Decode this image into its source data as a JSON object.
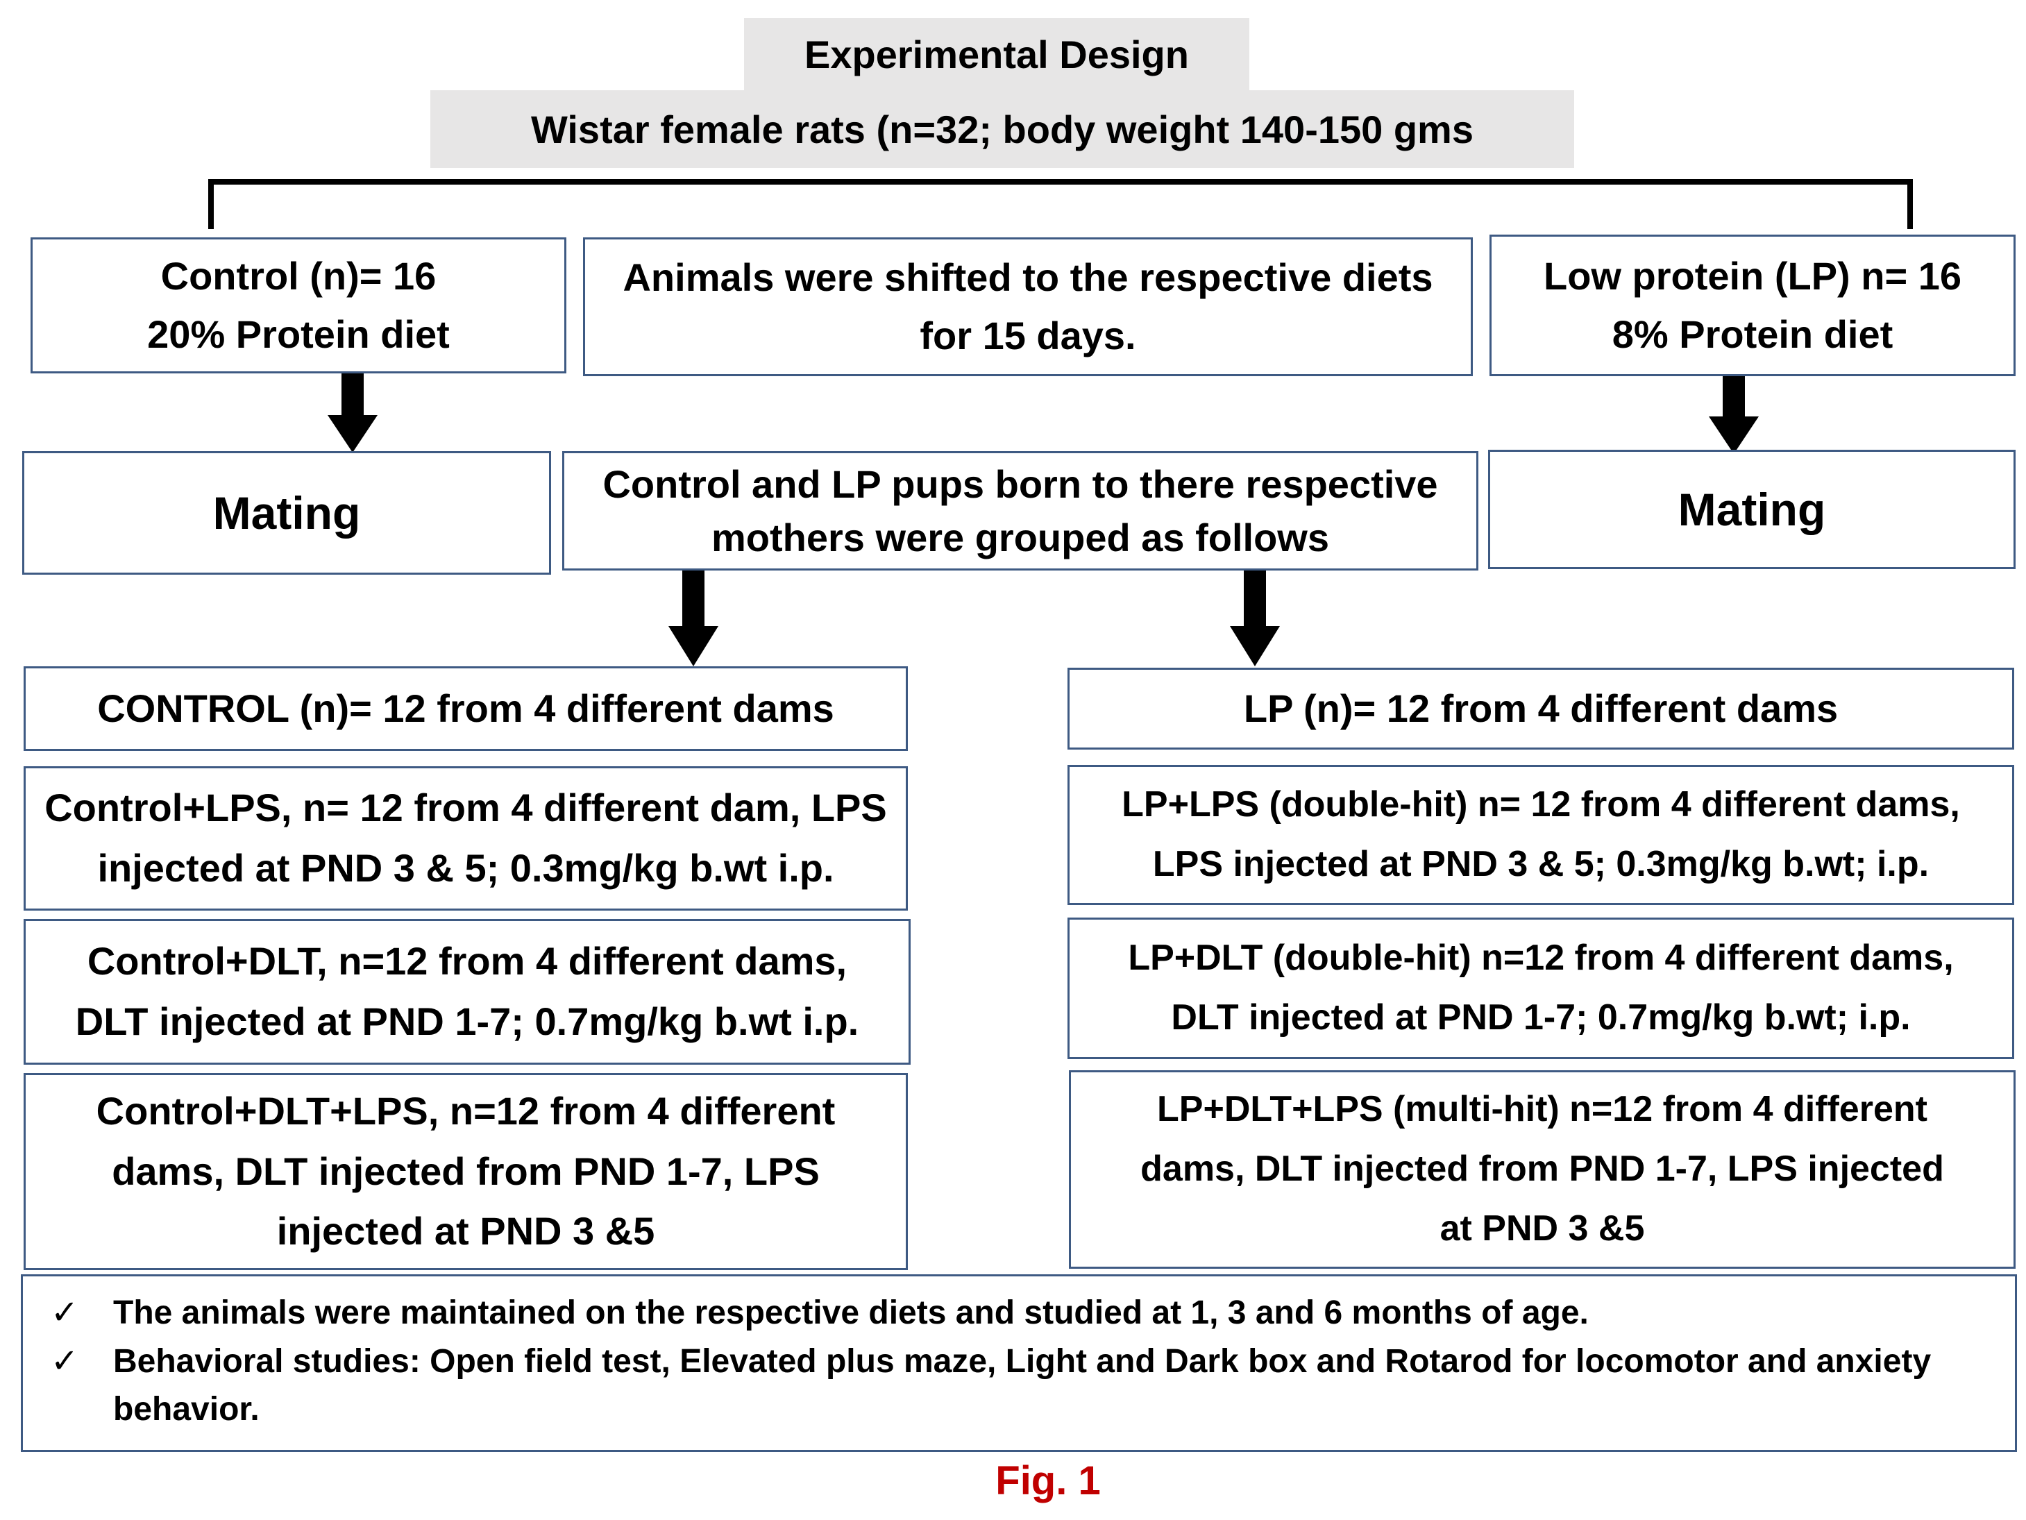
{
  "header": {
    "title": "Experimental Design",
    "subtitle": "Wistar female rats (n=32; body weight 140-150 gms"
  },
  "row1": {
    "control": [
      "Control (n)= 16",
      "20% Protein diet"
    ],
    "middle": [
      "Animals were shifted to the respective diets",
      "for 15 days."
    ],
    "lp": [
      "Low protein (LP) n= 16",
      "8% Protein diet"
    ]
  },
  "row2": {
    "left": "Mating",
    "middle": [
      "Control and LP pups born to there respective",
      "mothers were grouped as follows"
    ],
    "right": "Mating"
  },
  "left_groups": [
    [
      "CONTROL (n)= 12 from 4 different dams"
    ],
    [
      "Control+LPS, n= 12 from 4 different dam, LPS",
      "injected at PND 3 & 5; 0.3mg/kg b.wt i.p."
    ],
    [
      "Control+DLT, n=12 from 4 different dams,",
      "DLT injected at PND 1-7; 0.7mg/kg b.wt i.p."
    ],
    [
      "Control+DLT+LPS, n=12 from 4 different",
      "dams, DLT injected from PND 1-7, LPS",
      "injected at PND 3 &5"
    ]
  ],
  "right_groups": [
    [
      "LP (n)= 12 from 4 different dams"
    ],
    [
      "LP+LPS (double-hit) n= 12 from 4 different dams,",
      "LPS injected at PND 3 & 5; 0.3mg/kg b.wt; i.p."
    ],
    [
      "LP+DLT (double-hit) n=12 from 4 different dams,",
      "DLT injected at PND 1-7; 0.7mg/kg b.wt; i.p."
    ],
    [
      "LP+DLT+LPS (multi-hit) n=12 from 4 different",
      "dams, DLT injected from PND 1-7, LPS injected",
      "at PND 3 &5"
    ]
  ],
  "notes": {
    "check_icon": "✓",
    "items": [
      "The animals were maintained on the respective diets and studied at 1, 3 and 6 months of age.",
      "Behavioral studies: Open field test, Elevated plus maze, Light and Dark box and Rotarod for locomotor and anxiety behavior."
    ]
  },
  "caption": "Fig. 1",
  "colors": {
    "box_border": "#3e5a83",
    "header_bg": "#e7e6e6",
    "caption": "#c00000",
    "arrow": "#000000"
  }
}
